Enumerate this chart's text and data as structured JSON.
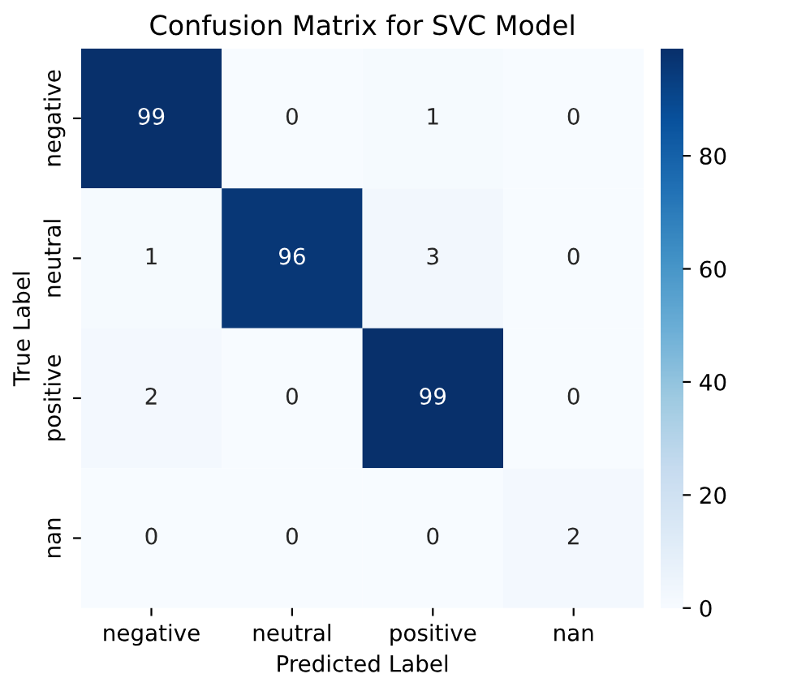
{
  "chart_data": {
    "type": "heatmap",
    "title": "Confusion Matrix for SVC Model",
    "xlabel": "Predicted Label",
    "ylabel": "True Label",
    "categories": [
      "negative",
      "neutral",
      "positive",
      "nan"
    ],
    "y_categories": [
      "negative",
      "neutral",
      "positive",
      "nan"
    ],
    "cells": [
      [
        99,
        0,
        1,
        0
      ],
      [
        1,
        96,
        3,
        0
      ],
      [
        2,
        0,
        99,
        0
      ],
      [
        0,
        0,
        0,
        2
      ]
    ],
    "data_labels": true,
    "clim": [
      0,
      99
    ],
    "cticks": [
      0,
      20,
      40,
      60,
      80
    ]
  }
}
